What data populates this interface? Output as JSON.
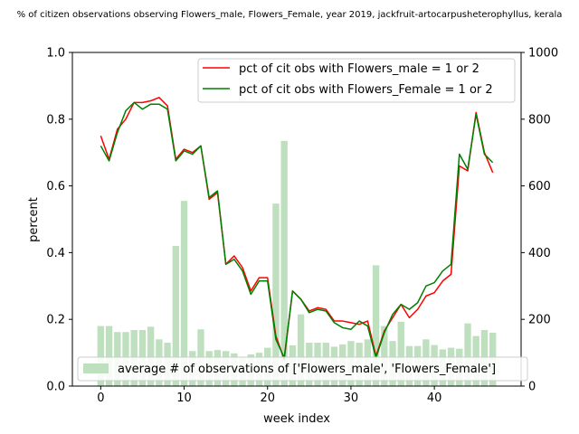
{
  "chart_data": {
    "type": "bar+line",
    "title": "% of citizen observations observing Flowers_male, Flowers_Female, year 2019, jackfruit-artocarpusheterophyllus, kerala",
    "xlabel": "week index",
    "ylabel_left": "percent",
    "ylabel_right": "",
    "xlim": [
      -3.4,
      50.4
    ],
    "ylim_left": [
      0,
      1
    ],
    "ylim_right": [
      0,
      1000
    ],
    "xticks": [
      "0",
      "10",
      "20",
      "30",
      "40"
    ],
    "yticks_left": [
      "0.0",
      "0.2",
      "0.4",
      "0.6",
      "0.8",
      "1.0"
    ],
    "yticks_right": [
      "0",
      "200",
      "400",
      "600",
      "800",
      "1000"
    ],
    "grid": false,
    "x": [
      0,
      1,
      2,
      3,
      4,
      5,
      6,
      7,
      8,
      9,
      10,
      11,
      12,
      13,
      14,
      15,
      16,
      17,
      18,
      19,
      20,
      21,
      22,
      23,
      24,
      25,
      26,
      27,
      28,
      29,
      30,
      31,
      32,
      33,
      34,
      35,
      36,
      37,
      38,
      39,
      40,
      41,
      42,
      43,
      44,
      45,
      46,
      47
    ],
    "line_series": [
      {
        "name": "pct of cit obs with Flowers_male = 1 or 2",
        "color": "#ff0000",
        "values": [
          0.75,
          0.68,
          0.77,
          0.8,
          0.85,
          0.85,
          0.855,
          0.865,
          0.84,
          0.68,
          0.71,
          0.7,
          0.72,
          0.56,
          0.58,
          0.365,
          0.39,
          0.355,
          0.285,
          0.325,
          0.325,
          0.15,
          0.08,
          0.285,
          0.26,
          0.225,
          0.235,
          0.23,
          0.195,
          0.195,
          0.19,
          0.185,
          0.195,
          0.09,
          0.165,
          0.205,
          0.245,
          0.205,
          0.23,
          0.27,
          0.28,
          0.315,
          0.335,
          0.66,
          0.645,
          0.82,
          0.7,
          0.64
        ]
      },
      {
        "name": "pct of cit obs with Flowers_Female = 1 or 2",
        "color": "#008000",
        "values": [
          0.72,
          0.675,
          0.76,
          0.825,
          0.85,
          0.83,
          0.845,
          0.845,
          0.83,
          0.675,
          0.705,
          0.695,
          0.72,
          0.565,
          0.585,
          0.365,
          0.38,
          0.345,
          0.275,
          0.315,
          0.315,
          0.14,
          0.085,
          0.285,
          0.26,
          0.22,
          0.23,
          0.225,
          0.19,
          0.175,
          0.17,
          0.195,
          0.18,
          0.085,
          0.16,
          0.215,
          0.245,
          0.23,
          0.25,
          0.3,
          0.31,
          0.345,
          0.365,
          0.695,
          0.65,
          0.815,
          0.695,
          0.67
        ]
      }
    ],
    "bar_series": {
      "name": "average # of observations of ['Flowers_male', 'Flowers_Female']",
      "color": "#bfe0bf",
      "values": [
        180,
        180,
        162,
        162,
        168,
        168,
        178,
        140,
        130,
        420,
        555,
        105,
        170,
        105,
        108,
        105,
        98,
        85,
        95,
        100,
        115,
        547,
        735,
        122,
        215,
        130,
        130,
        130,
        118,
        125,
        135,
        130,
        140,
        362,
        180,
        135,
        193,
        120,
        120,
        140,
        123,
        110,
        115,
        112,
        188,
        150,
        168,
        160
      ]
    },
    "legends": {
      "lines_location": "upper right",
      "bars_location": "lower left"
    }
  }
}
